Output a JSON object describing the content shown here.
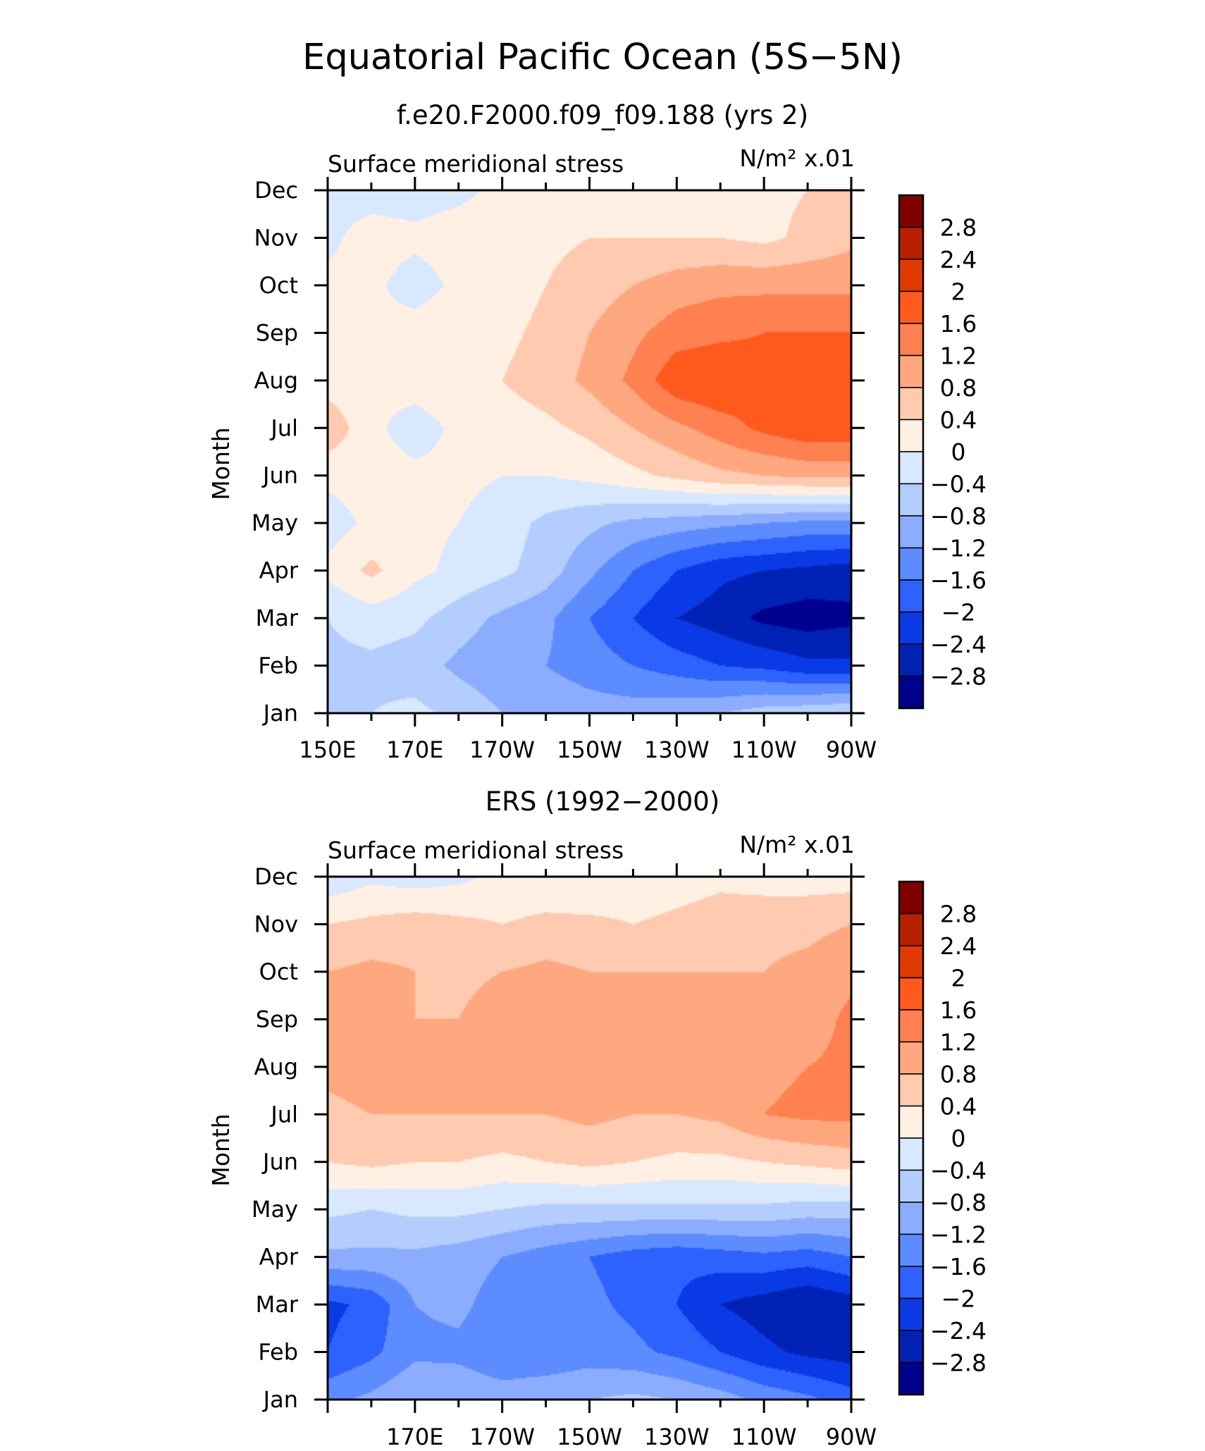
{
  "figure": {
    "title": "Equatorial Pacific Ocean (5S−5N)"
  },
  "colorbar": {
    "levels": [
      "2.8",
      "2.4",
      "2",
      "1.6",
      "1.2",
      "0.8",
      "0.4",
      "0",
      "−0.4",
      "−0.8",
      "−1.2",
      "−1.6",
      "−2",
      "−2.4",
      "−2.8"
    ],
    "colors": [
      "#800000",
      "#b82000",
      "#e03a00",
      "#ff5a1e",
      "#ff8050",
      "#ffa880",
      "#ffcab0",
      "#fff0e3",
      "#d8e8ff",
      "#b4cdff",
      "#8cadff",
      "#5c8cff",
      "#2e62ff",
      "#0a3ae6",
      "#0022b4",
      "#000090"
    ]
  },
  "chart_data": [
    {
      "type": "heatmap",
      "subtitle": "f.e20.F2000.f09_f09.188 (yrs 2)",
      "left_label": "Surface meridional stress",
      "right_label": "N/m² x.01",
      "ylabel": "Month",
      "xlabel": "",
      "x_ticks": [
        "150E",
        "170E",
        "170W",
        "150W",
        "130W",
        "110W",
        "90W"
      ],
      "y_ticks": [
        "Jan",
        "Feb",
        "Mar",
        "Apr",
        "May",
        "Jun",
        "Jul",
        "Aug",
        "Sep",
        "Oct",
        "Nov",
        "Dec"
      ],
      "xlim": [
        "150E",
        "90W"
      ],
      "ylim": [
        "Jan",
        "Dec"
      ],
      "x": [
        150,
        160,
        170,
        180,
        190,
        200,
        210,
        220,
        230,
        240,
        250,
        260,
        270
      ],
      "values": [
        [
          -0.6,
          -0.4,
          -0.3,
          -0.5,
          -0.8,
          -0.9,
          -1.0,
          -1.0,
          -0.9,
          -0.8,
          -0.6,
          -0.5,
          -0.4
        ],
        [
          -0.5,
          -0.5,
          -0.6,
          -0.9,
          -1.1,
          -1.2,
          -1.4,
          -1.6,
          -1.8,
          -2.0,
          -2.1,
          -2.3,
          -2.3
        ],
        [
          -0.4,
          -0.2,
          -0.3,
          -0.6,
          -0.9,
          -1.1,
          -1.6,
          -2.0,
          -2.4,
          -2.6,
          -2.9,
          -3.0,
          -2.9
        ],
        [
          0.1,
          0.5,
          0.1,
          -0.1,
          -0.3,
          -0.6,
          -1.1,
          -1.6,
          -2.0,
          -2.3,
          -2.4,
          -2.5,
          -2.6
        ],
        [
          -0.2,
          0.1,
          0.1,
          0.0,
          -0.2,
          -0.5,
          -0.7,
          -0.9,
          -1.0,
          -1.1,
          -1.2,
          -1.3,
          -1.3
        ],
        [
          0.1,
          0.2,
          0.1,
          0.1,
          0.0,
          0.0,
          0.1,
          0.3,
          0.5,
          0.7,
          0.8,
          0.9,
          0.9
        ],
        [
          0.7,
          0.1,
          -0.2,
          0.1,
          0.2,
          0.3,
          0.5,
          0.8,
          1.1,
          1.4,
          1.7,
          1.9,
          1.9
        ],
        [
          0.2,
          0.1,
          0.2,
          0.3,
          0.4,
          0.6,
          0.9,
          1.3,
          1.9,
          2.0,
          1.8,
          1.7,
          1.6
        ],
        [
          0.1,
          0.1,
          0.2,
          0.3,
          0.3,
          0.5,
          0.8,
          1.1,
          1.4,
          1.5,
          1.6,
          1.6,
          1.6
        ],
        [
          0.1,
          0.1,
          -0.2,
          0.1,
          0.2,
          0.4,
          0.6,
          0.8,
          1.0,
          1.1,
          1.1,
          1.1,
          1.1
        ],
        [
          -0.1,
          0.2,
          0.1,
          0.2,
          0.2,
          0.3,
          0.4,
          0.4,
          0.4,
          0.4,
          0.3,
          0.5,
          0.7
        ],
        [
          -0.2,
          -0.2,
          -0.2,
          -0.1,
          0.1,
          0.2,
          0.2,
          0.2,
          0.3,
          0.3,
          0.3,
          0.4,
          0.5
        ]
      ]
    },
    {
      "type": "heatmap",
      "subtitle": "ERS (1992−2000)",
      "left_label": "Surface meridional stress",
      "right_label": "N/m² x.01",
      "ylabel": "Month",
      "xlabel": "",
      "x_ticks": [
        "170E",
        "170W",
        "150W",
        "130W",
        "110W",
        "90W"
      ],
      "y_ticks": [
        "Jan",
        "Feb",
        "Mar",
        "Apr",
        "May",
        "Jun",
        "Jul",
        "Aug",
        "Sep",
        "Oct",
        "Nov",
        "Dec"
      ],
      "xlim": [
        "150E",
        "90W"
      ],
      "ylim": [
        "Jan",
        "Dec"
      ],
      "x": [
        150,
        160,
        170,
        180,
        190,
        200,
        210,
        220,
        230,
        240,
        250,
        260,
        270
      ],
      "values": [
        [
          -1.3,
          -1.1,
          -0.8,
          -0.9,
          -1.0,
          -0.9,
          -0.8,
          -0.7,
          -0.8,
          -1.0,
          -1.3,
          -1.5,
          -1.8
        ],
        [
          -2.0,
          -1.7,
          -1.3,
          -1.3,
          -1.5,
          -1.5,
          -1.4,
          -1.5,
          -1.7,
          -2.0,
          -2.3,
          -2.5,
          -2.6
        ],
        [
          -2.1,
          -1.9,
          -1.2,
          -1.1,
          -1.4,
          -1.5,
          -1.5,
          -1.7,
          -2.0,
          -2.4,
          -2.6,
          -2.8,
          -2.6
        ],
        [
          -0.9,
          -0.9,
          -0.9,
          -1.0,
          -1.2,
          -1.4,
          -1.6,
          -1.8,
          -1.9,
          -1.8,
          -1.7,
          -1.8,
          -1.6
        ],
        [
          -0.3,
          -0.4,
          -0.3,
          -0.3,
          -0.4,
          -0.5,
          -0.5,
          -0.5,
          -0.5,
          -0.5,
          -0.5,
          -0.6,
          -0.6
        ],
        [
          0.4,
          0.5,
          0.4,
          0.4,
          0.3,
          0.4,
          0.5,
          0.4,
          0.3,
          0.3,
          0.4,
          0.5,
          0.6
        ],
        [
          0.7,
          0.8,
          0.8,
          0.8,
          0.8,
          0.8,
          0.9,
          0.8,
          0.8,
          0.9,
          1.2,
          1.3,
          1.3
        ],
        [
          0.9,
          1.0,
          0.9,
          0.9,
          1.0,
          0.9,
          1.0,
          0.9,
          0.9,
          1.0,
          1.1,
          1.2,
          1.3
        ],
        [
          1.1,
          1.0,
          0.8,
          0.8,
          1.0,
          1.0,
          0.9,
          0.9,
          0.9,
          0.9,
          0.9,
          1.0,
          1.3
        ],
        [
          0.8,
          0.9,
          0.8,
          0.7,
          0.8,
          0.9,
          0.8,
          0.8,
          0.8,
          0.8,
          0.8,
          0.9,
          1.1
        ],
        [
          0.4,
          0.5,
          0.6,
          0.5,
          0.4,
          0.5,
          0.5,
          0.4,
          0.5,
          0.6,
          0.7,
          0.7,
          0.8
        ],
        [
          -0.3,
          -0.1,
          -0.2,
          -0.1,
          0.1,
          0.1,
          0.0,
          0.1,
          0.2,
          0.3,
          0.2,
          0.2,
          0.2
        ]
      ]
    }
  ]
}
